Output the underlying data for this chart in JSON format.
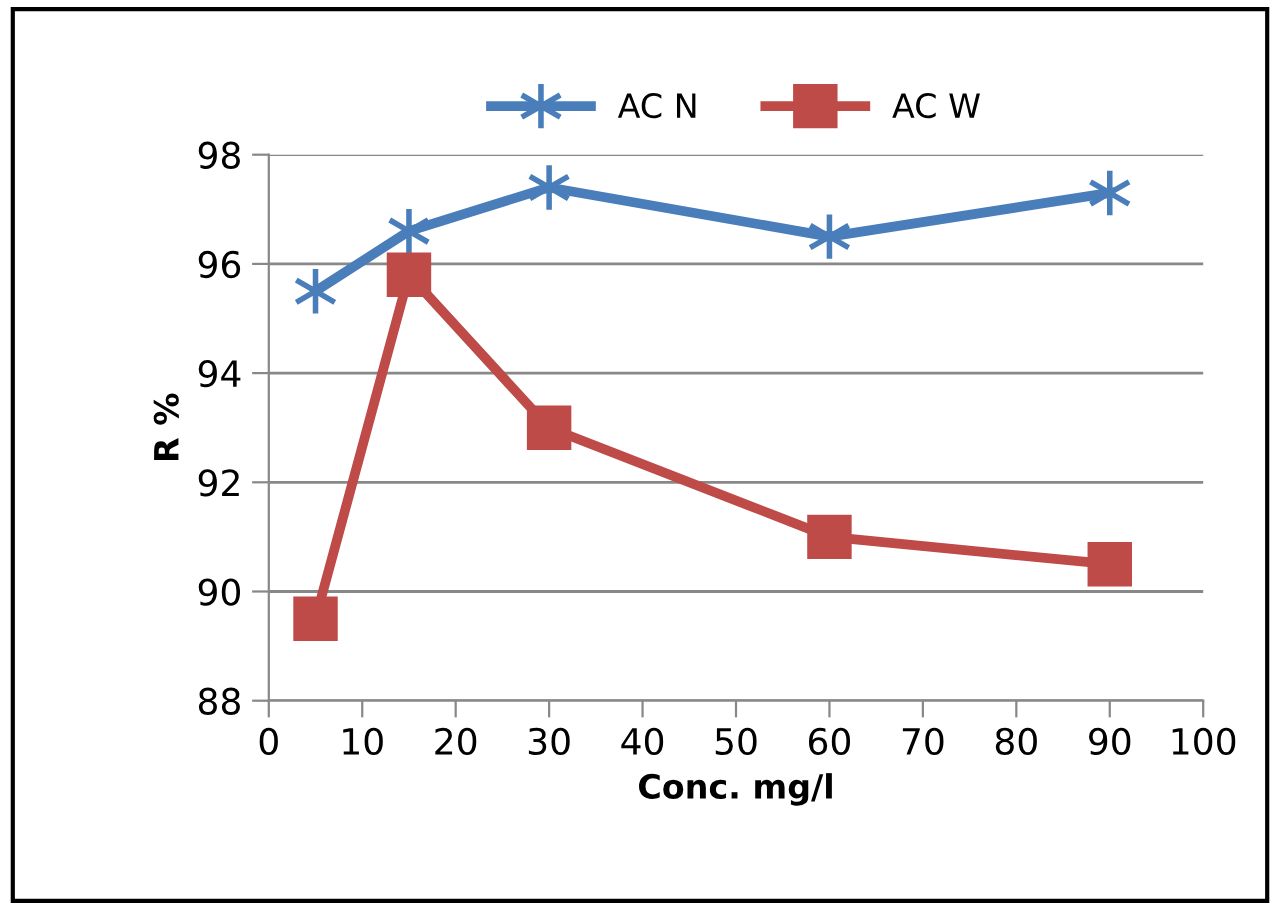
{
  "chart_data": {
    "type": "line",
    "xlabel": "Conc. mg/l",
    "ylabel": "R %",
    "x": [
      5,
      15,
      30,
      60,
      90
    ],
    "series": [
      {
        "name": "AC N",
        "color": "#4a7ebb",
        "marker": "cross",
        "values": [
          95.5,
          96.6,
          97.4,
          96.5,
          97.3
        ]
      },
      {
        "name": "AC W",
        "color": "#be4b48",
        "marker": "square",
        "values": [
          89.5,
          95.8,
          93.0,
          91.0,
          90.5
        ]
      }
    ],
    "xlim": [
      0,
      100
    ],
    "xticks": [
      0,
      10,
      20,
      30,
      40,
      50,
      60,
      70,
      80,
      90,
      100
    ],
    "ylim": [
      88,
      98
    ],
    "yticks": [
      88,
      90,
      92,
      94,
      96,
      98
    ],
    "grid": "y",
    "legend": "top"
  }
}
